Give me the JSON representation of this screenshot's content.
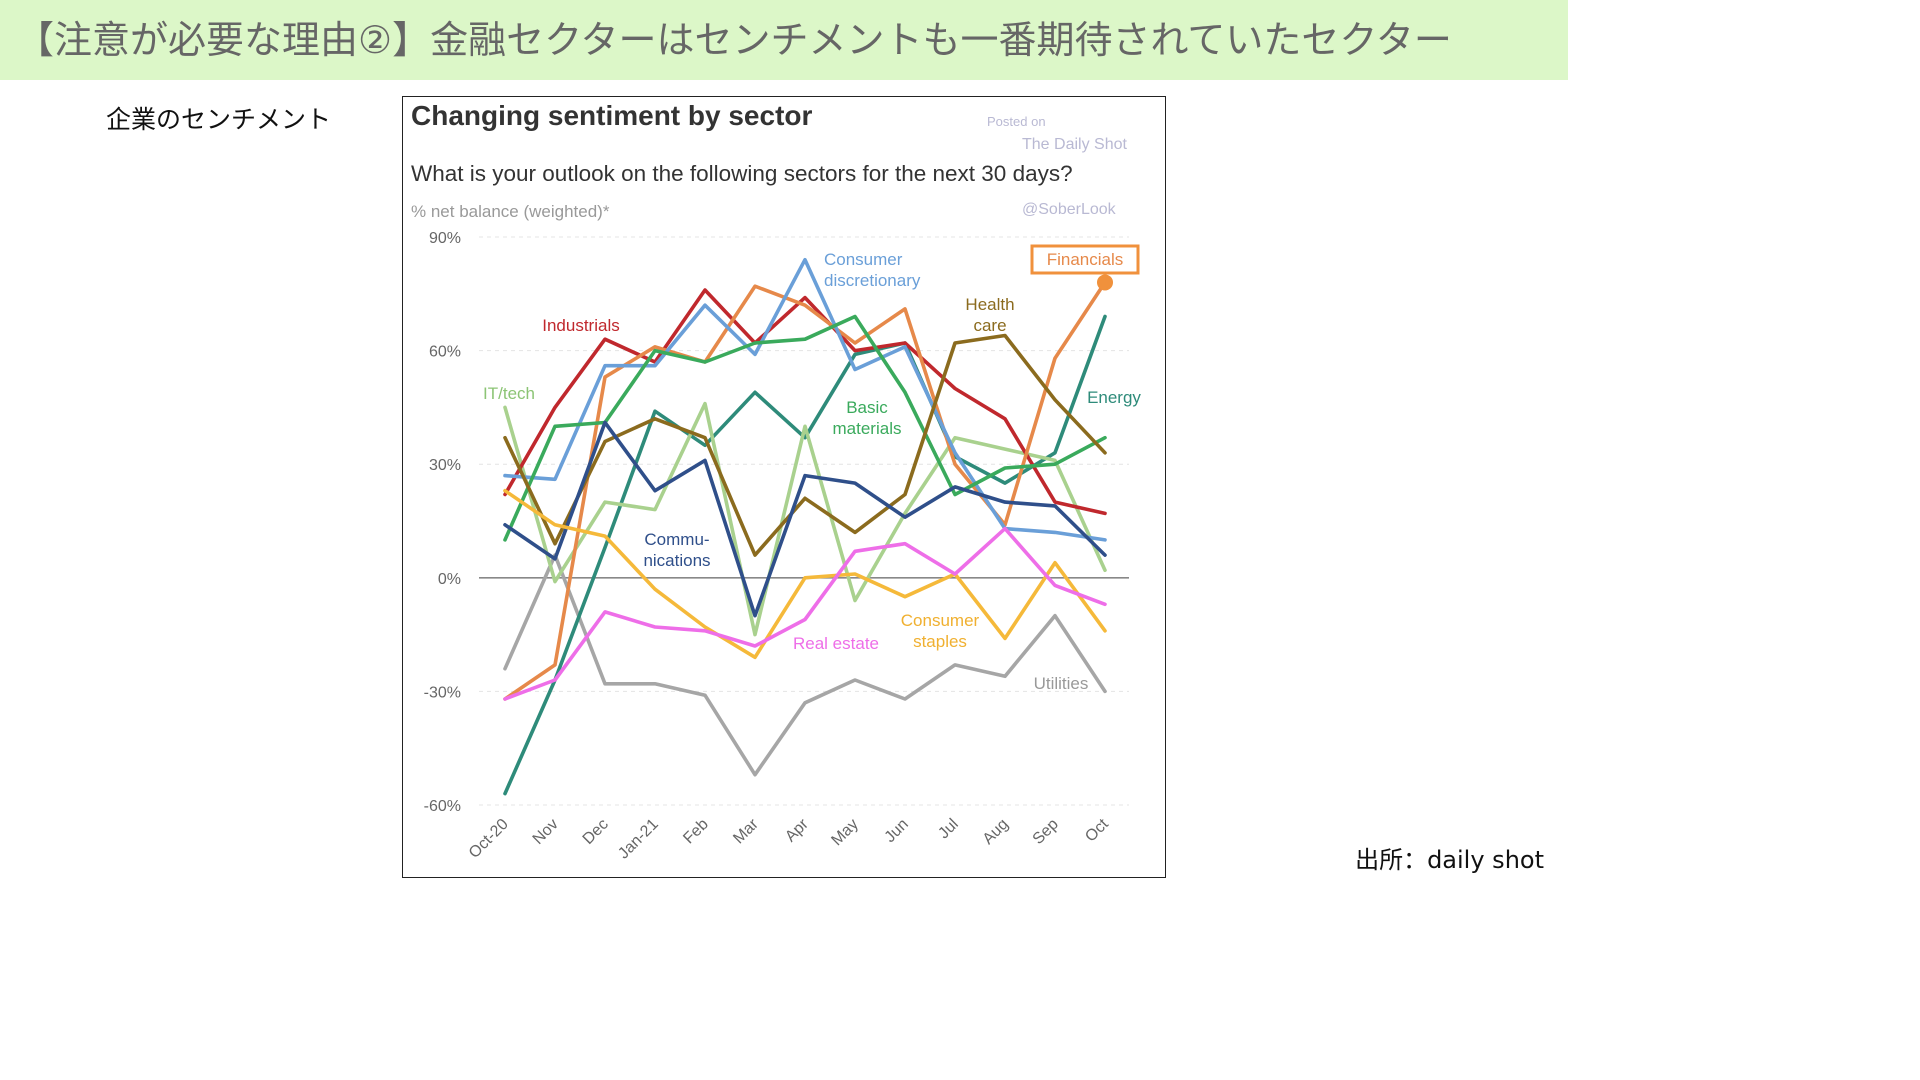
{
  "banner": {
    "title": "【注意が必要な理由②】金融セクターはセンチメントも一番期待されていたセクター"
  },
  "side_label": "企業のセンチメント",
  "source": "出所：daily shot",
  "watermark": {
    "posted": "Posted on",
    "site": "The Daily Shot",
    "handle": "@SoberLook"
  },
  "chart_data": {
    "type": "line",
    "title": "Changing sentiment by sector",
    "subtitle": "What is your outlook on the following sectors for the next 30 days?",
    "ylabel": "% net balance (weighted)*",
    "xlabel": "",
    "ylim": [
      -60,
      90
    ],
    "yticks": [
      90,
      60,
      30,
      0,
      -30,
      -60
    ],
    "ytick_labels": [
      "90%",
      "60%",
      "30%",
      "0%",
      "-30%",
      "-60%"
    ],
    "grid": true,
    "legend": "inline labels",
    "categories": [
      "Oct-20",
      "Nov",
      "Dec",
      "Jan-21",
      "Feb",
      "Mar",
      "Apr",
      "May",
      "Jun",
      "Jul",
      "Aug",
      "Sep",
      "Oct"
    ],
    "series": [
      {
        "name": "Utilities",
        "color": "#a6a6a6",
        "values": [
          -24,
          6,
          -28,
          -28,
          -31,
          -52,
          -33,
          -27,
          -32,
          -23,
          -26,
          -10,
          -30
        ]
      },
      {
        "name": "Energy",
        "color": "#2e8b7a",
        "values": [
          -57,
          -27,
          8,
          44,
          35,
          49,
          37,
          59,
          62,
          32,
          25,
          33,
          69
        ]
      },
      {
        "name": "IT/tech",
        "color": "#a9d18e",
        "values": [
          45,
          -1,
          20,
          18,
          46,
          -15,
          40,
          -6,
          17,
          37,
          34,
          31,
          2
        ]
      },
      {
        "name": "Industrials",
        "color": "#c0282d",
        "values": [
          22,
          45,
          63,
          57,
          76,
          62,
          74,
          60,
          62,
          50,
          42,
          20,
          17
        ]
      },
      {
        "name": "Financials",
        "color": "#e6894a",
        "values": [
          -32,
          -23,
          53,
          61,
          57,
          77,
          72,
          62,
          71,
          30,
          14,
          58,
          78
        ]
      },
      {
        "name": "Consumer discretionary",
        "color": "#6a9fd8",
        "values": [
          27,
          26,
          56,
          56,
          72,
          59,
          84,
          55,
          61,
          33,
          13,
          12,
          10
        ]
      },
      {
        "name": "Basic materials",
        "color": "#3aaa5c",
        "values": [
          10,
          40,
          41,
          60,
          57,
          62,
          63,
          69,
          49,
          22,
          29,
          30,
          37
        ]
      },
      {
        "name": "Health care",
        "color": "#8b6b1e",
        "values": [
          37,
          9,
          36,
          42,
          37,
          6,
          21,
          12,
          22,
          62,
          64,
          47,
          33
        ]
      },
      {
        "name": "Communications",
        "color": "#2f4f8a",
        "values": [
          14,
          5,
          41,
          23,
          31,
          -10,
          27,
          25,
          16,
          24,
          20,
          19,
          6
        ]
      },
      {
        "name": "Consumer staples",
        "color": "#f5b93a",
        "values": [
          23,
          14,
          11,
          -3,
          -13,
          -21,
          0,
          1,
          -5,
          1,
          -16,
          4,
          -14
        ]
      },
      {
        "name": "Real estate",
        "color": "#ee6ee8",
        "values": [
          -32,
          -27,
          -9,
          -13,
          -14,
          -18,
          -11,
          7,
          9,
          1,
          13,
          -2,
          -7
        ]
      }
    ],
    "labels": [
      {
        "series": "Industrials",
        "lines": [
          "Industrials"
        ]
      },
      {
        "series": "IT/tech",
        "lines": [
          "IT/tech"
        ]
      },
      {
        "series": "Consumer discretionary",
        "lines": [
          "Consumer",
          "discretionary"
        ]
      },
      {
        "series": "Financials",
        "lines": [
          "Financials"
        ]
      },
      {
        "series": "Health care",
        "lines": [
          "Health",
          "care"
        ]
      },
      {
        "series": "Basic materials",
        "lines": [
          "Basic",
          "materials"
        ]
      },
      {
        "series": "Energy",
        "lines": [
          "Energy"
        ]
      },
      {
        "series": "Communications",
        "lines": [
          "Commu-",
          "nications"
        ]
      },
      {
        "series": "Real estate",
        "lines": [
          "Real estate"
        ]
      },
      {
        "series": "Consumer staples",
        "lines": [
          "Consumer",
          "staples"
        ]
      },
      {
        "series": "Utilities",
        "lines": [
          "Utilities"
        ]
      }
    ],
    "highlight": {
      "series": "Financials",
      "point_index": 12
    }
  }
}
